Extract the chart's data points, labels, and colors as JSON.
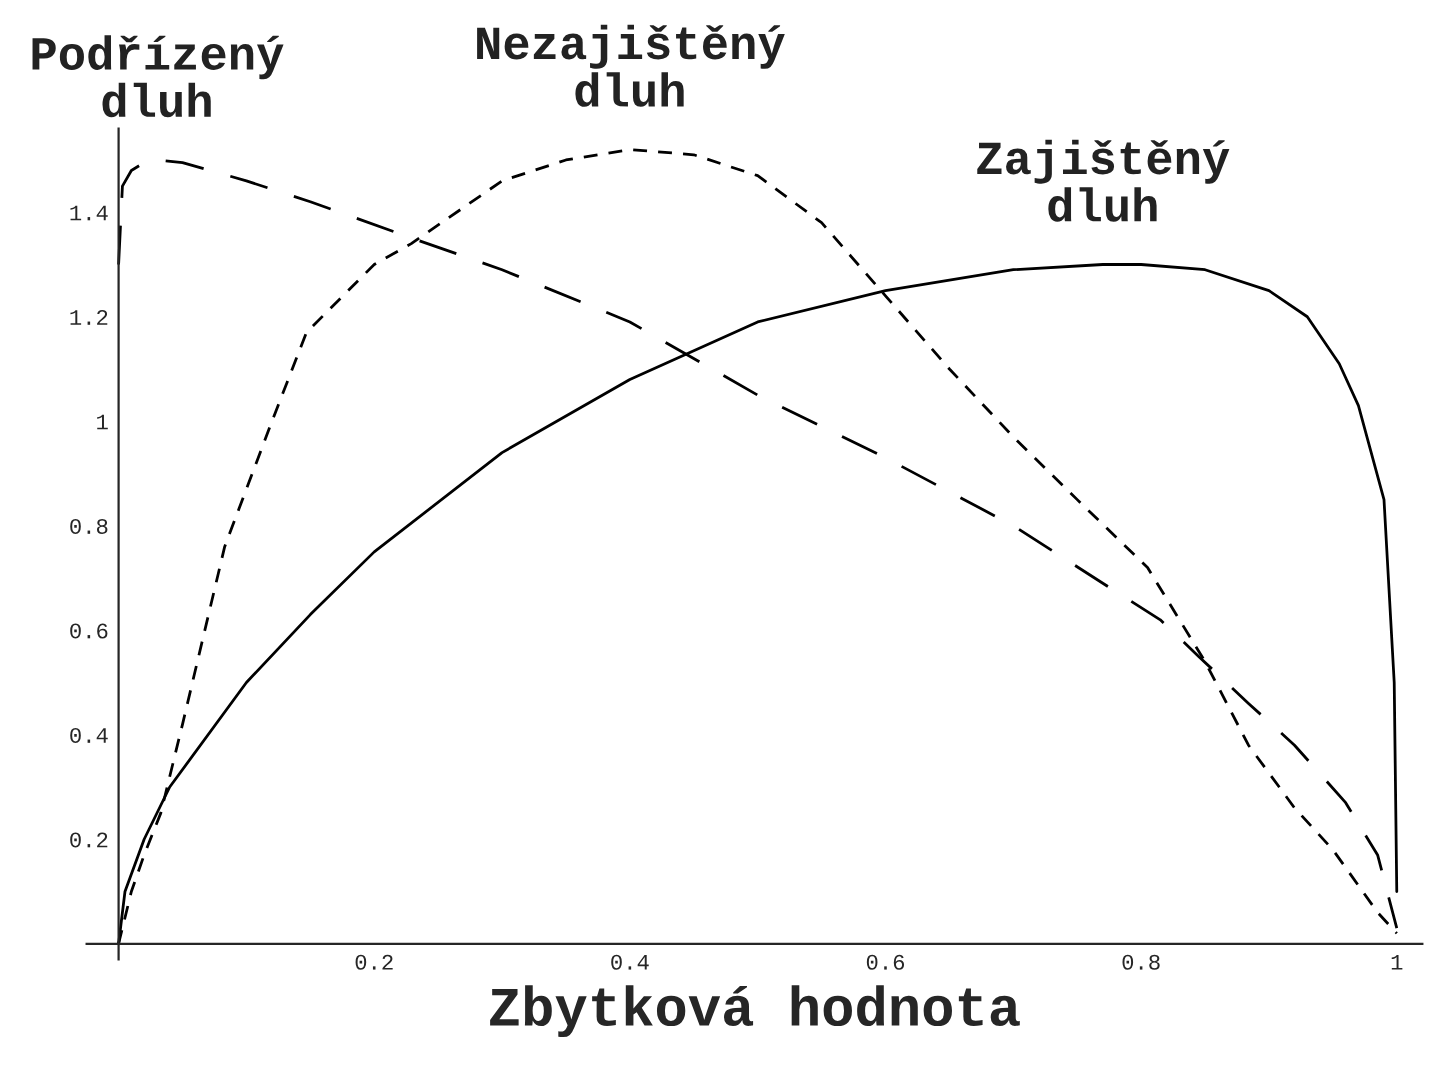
{
  "chart_data": {
    "type": "line",
    "xlabel": "Zbytková hodnota",
    "xlim": [
      -0.025,
      1.02
    ],
    "ylim": [
      -0.03,
      1.56
    ],
    "xticks": [
      0.2,
      0.4,
      0.6,
      0.8,
      1
    ],
    "yticks": [
      0.2,
      0.4,
      0.6,
      0.8,
      1,
      1.2,
      1.4
    ],
    "grid": false,
    "legend": false,
    "marker": "none",
    "series": [
      {
        "name": "Podřízený\ndluh",
        "color": "#000000",
        "line_style": "dashed",
        "x": [
          0,
          0.003,
          0.01,
          0.02,
          0.03,
          0.05,
          0.1,
          0.15,
          0.23,
          0.3,
          0.4,
          0.5,
          0.6,
          0.7,
          0.77,
          0.815,
          0.845,
          0.884,
          0.92,
          0.96,
          0.985,
          1.0
        ],
        "values": [
          1.3,
          1.45,
          1.48,
          1.495,
          1.5,
          1.495,
          1.46,
          1.42,
          1.35,
          1.29,
          1.19,
          1.05,
          0.93,
          0.8,
          0.69,
          0.62,
          0.55,
          0.46,
          0.38,
          0.27,
          0.17,
          0.03
        ]
      },
      {
        "name": "Nezajištěný\ndluh",
        "color": "#000000",
        "line_style": "dashed",
        "x": [
          0,
          0.01,
          0.02,
          0.033,
          0.05,
          0.083,
          0.12,
          0.147,
          0.2,
          0.229,
          0.3,
          0.35,
          0.4,
          0.45,
          0.5,
          0.55,
          0.6,
          0.65,
          0.7,
          0.75,
          0.805,
          0.85,
          0.884,
          0.92,
          0.95,
          0.985,
          1.0
        ],
        "values": [
          0,
          0.1,
          0.17,
          0.25,
          0.42,
          0.76,
          1.0,
          1.17,
          1.3,
          1.34,
          1.46,
          1.5,
          1.52,
          1.51,
          1.47,
          1.38,
          1.24,
          1.1,
          0.97,
          0.85,
          0.72,
          0.54,
          0.38,
          0.26,
          0.18,
          0.06,
          0.02
        ]
      },
      {
        "name": "Zajištěný\ndluh",
        "color": "#000000",
        "line_style": "solid",
        "x": [
          0,
          0.005,
          0.02,
          0.04,
          0.1,
          0.15,
          0.2,
          0.3,
          0.4,
          0.5,
          0.6,
          0.7,
          0.77,
          0.8,
          0.85,
          0.9,
          0.93,
          0.955,
          0.97,
          0.99,
          0.998,
          1.0
        ],
        "values": [
          0,
          0.1,
          0.2,
          0.3,
          0.5,
          0.63,
          0.75,
          0.94,
          1.08,
          1.19,
          1.25,
          1.29,
          1.3,
          1.3,
          1.29,
          1.25,
          1.2,
          1.11,
          1.03,
          0.85,
          0.5,
          0.1
        ]
      }
    ]
  }
}
